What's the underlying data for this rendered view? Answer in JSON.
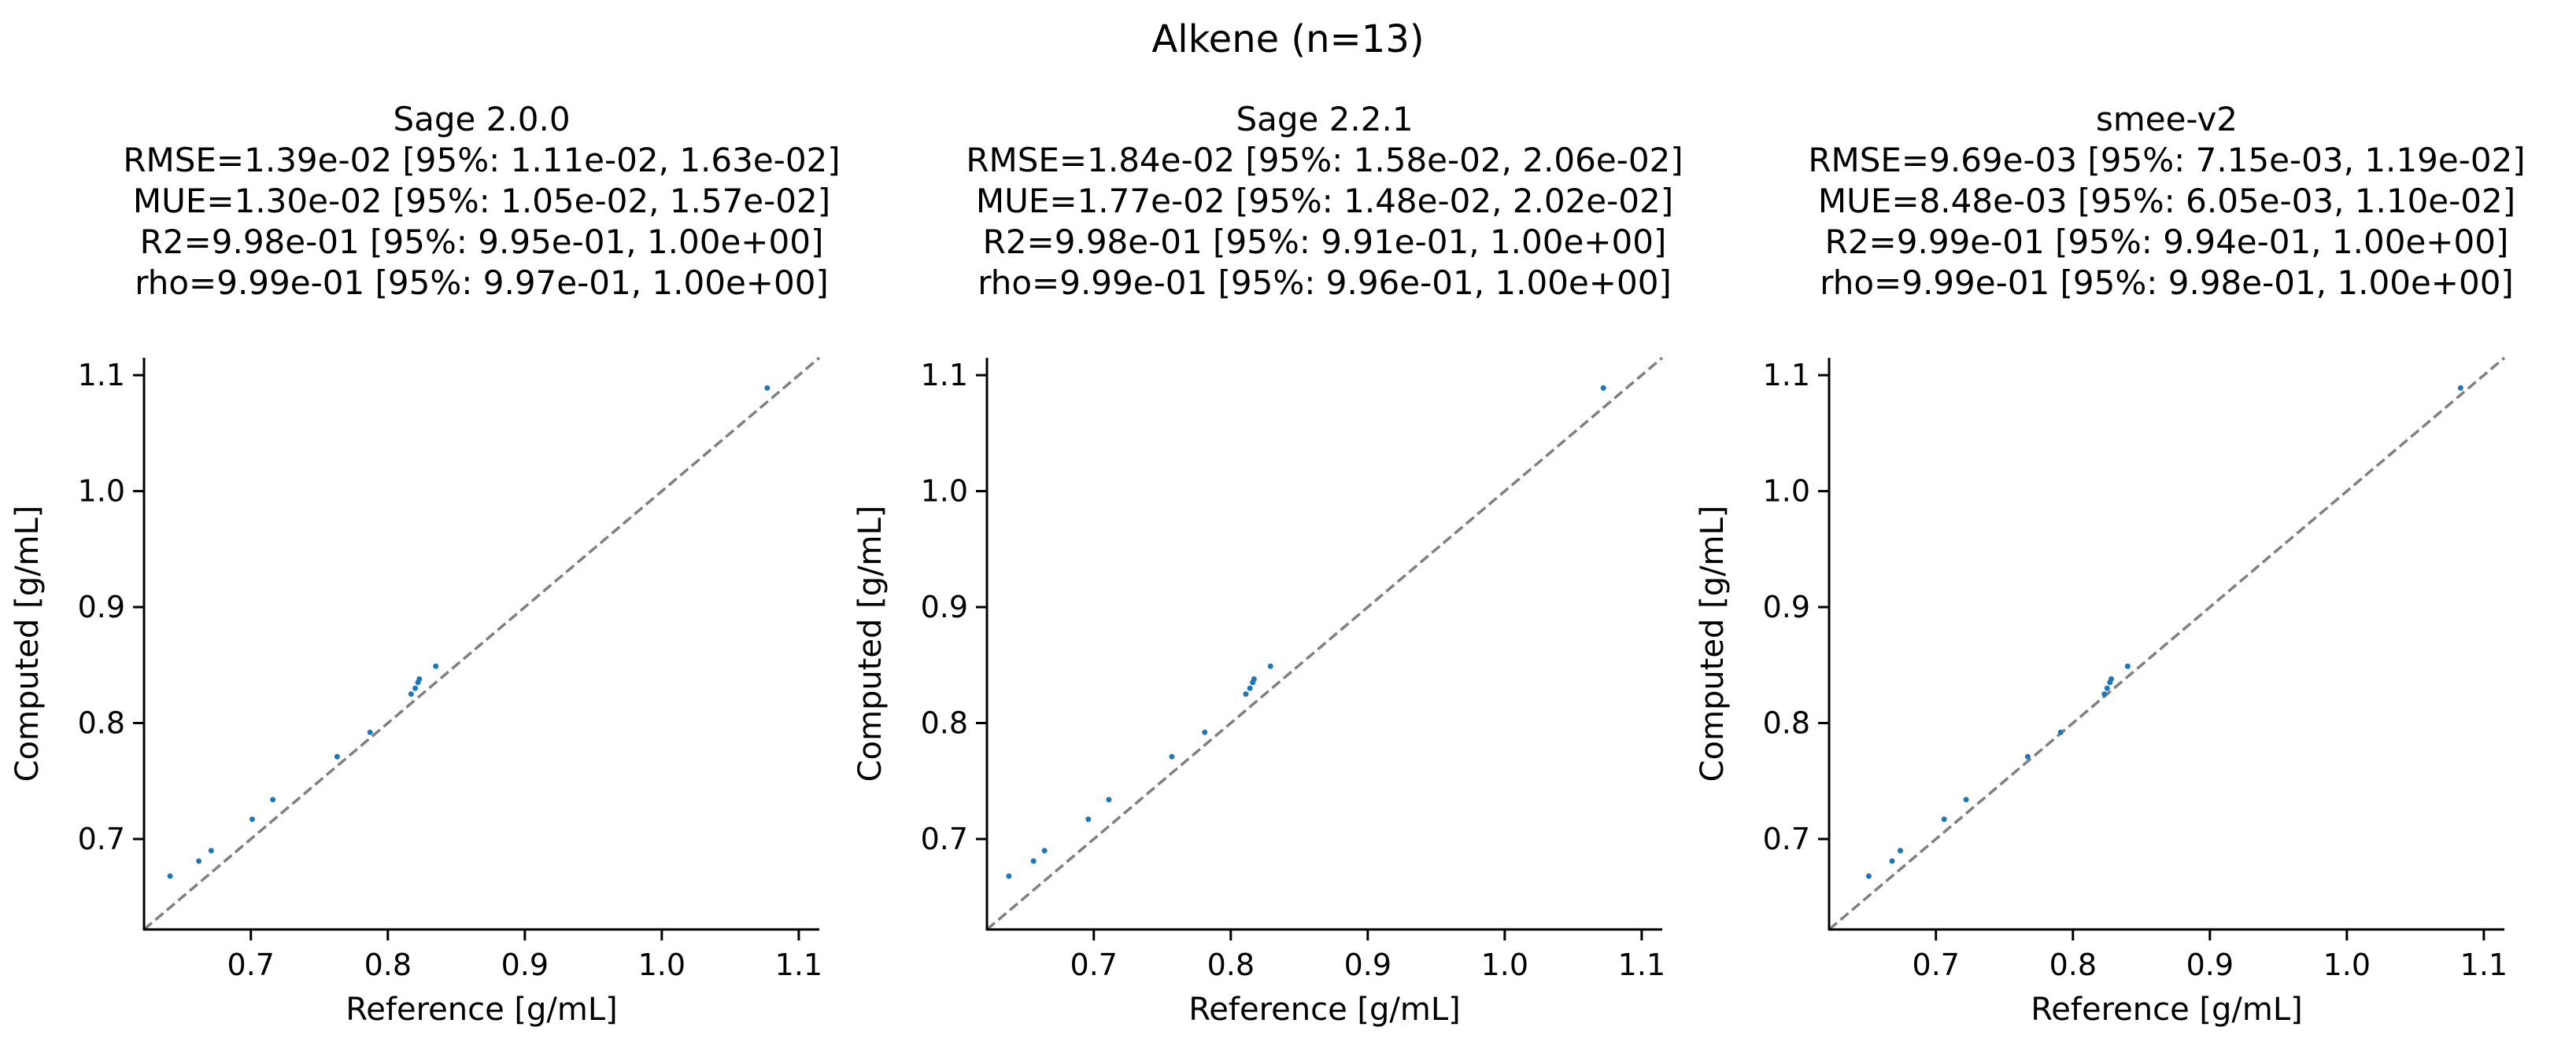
{
  "figure_title": "Alkene (n=13)",
  "chart_data": [
    {
      "type": "scatter",
      "title": "Sage 2.0.0",
      "stats": [
        "RMSE=1.39e-02 [95%: 1.11e-02, 1.63e-02]",
        "MUE=1.30e-02 [95%: 1.05e-02, 1.57e-02]",
        "R2=9.98e-01 [95%: 9.95e-01, 1.00e+00]",
        "rho=9.99e-01 [95%: 9.97e-01, 1.00e+00]"
      ],
      "xlabel": "Reference [g/mL]",
      "ylabel": "Computed [g/mL]",
      "xlim": [
        0.622,
        1.115
      ],
      "ylim": [
        0.622,
        1.115
      ],
      "xticks": [
        "0.7",
        "0.8",
        "0.9",
        "1.0",
        "1.1"
      ],
      "yticks": [
        "0.7",
        "0.8",
        "0.9",
        "1.0",
        "1.1"
      ],
      "diagonal": true,
      "points": [
        [
          0.641,
          0.668
        ],
        [
          0.662,
          0.681
        ],
        [
          0.671,
          0.69
        ],
        [
          0.701,
          0.717
        ],
        [
          0.716,
          0.734
        ],
        [
          0.763,
          0.771
        ],
        [
          0.787,
          0.792
        ],
        [
          0.817,
          0.825
        ],
        [
          0.82,
          0.83
        ],
        [
          0.822,
          0.835
        ],
        [
          0.823,
          0.838
        ],
        [
          0.835,
          0.849
        ],
        [
          1.077,
          1.089
        ]
      ]
    },
    {
      "type": "scatter",
      "title": "Sage 2.2.1",
      "stats": [
        "RMSE=1.84e-02 [95%: 1.58e-02, 2.06e-02]",
        "MUE=1.77e-02 [95%: 1.48e-02, 2.02e-02]",
        "R2=9.98e-01 [95%: 9.91e-01, 1.00e+00]",
        "rho=9.99e-01 [95%: 9.96e-01, 1.00e+00]"
      ],
      "xlabel": "Reference [g/mL]",
      "ylabel": "Computed [g/mL]",
      "xlim": [
        0.622,
        1.115
      ],
      "ylim": [
        0.622,
        1.115
      ],
      "xticks": [
        "0.7",
        "0.8",
        "0.9",
        "1.0",
        "1.1"
      ],
      "yticks": [
        "0.7",
        "0.8",
        "0.9",
        "1.0",
        "1.1"
      ],
      "diagonal": true,
      "points": [
        [
          0.638,
          0.668
        ],
        [
          0.656,
          0.681
        ],
        [
          0.664,
          0.69
        ],
        [
          0.696,
          0.717
        ],
        [
          0.711,
          0.734
        ],
        [
          0.757,
          0.771
        ],
        [
          0.781,
          0.792
        ],
        [
          0.811,
          0.825
        ],
        [
          0.814,
          0.83
        ],
        [
          0.816,
          0.835
        ],
        [
          0.817,
          0.838
        ],
        [
          0.829,
          0.849
        ],
        [
          1.072,
          1.089
        ]
      ]
    },
    {
      "type": "scatter",
      "title": "smee-v2",
      "stats": [
        "RMSE=9.69e-03 [95%: 7.15e-03, 1.19e-02]",
        "MUE=8.48e-03 [95%: 6.05e-03, 1.10e-02]",
        "R2=9.99e-01 [95%: 9.94e-01, 1.00e+00]",
        "rho=9.99e-01 [95%: 9.98e-01, 1.00e+00]"
      ],
      "xlabel": "Reference [g/mL]",
      "ylabel": "Computed [g/mL]",
      "xlim": [
        0.622,
        1.115
      ],
      "ylim": [
        0.622,
        1.115
      ],
      "xticks": [
        "0.7",
        "0.8",
        "0.9",
        "1.0",
        "1.1"
      ],
      "yticks": [
        "0.7",
        "0.8",
        "0.9",
        "1.0",
        "1.1"
      ],
      "diagonal": true,
      "points": [
        [
          0.651,
          0.668
        ],
        [
          0.668,
          0.681
        ],
        [
          0.674,
          0.69
        ],
        [
          0.706,
          0.717
        ],
        [
          0.722,
          0.734
        ],
        [
          0.767,
          0.771
        ],
        [
          0.791,
          0.792
        ],
        [
          0.823,
          0.825
        ],
        [
          0.825,
          0.83
        ],
        [
          0.827,
          0.835
        ],
        [
          0.828,
          0.838
        ],
        [
          0.84,
          0.849
        ],
        [
          1.083,
          1.089
        ]
      ]
    }
  ],
  "colors": {
    "points": "#1f77b4",
    "diagonal": "#808080",
    "axes": "#000000"
  }
}
